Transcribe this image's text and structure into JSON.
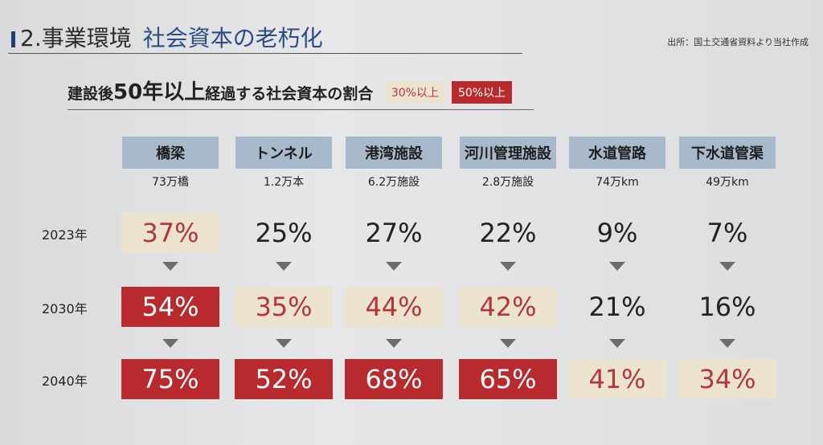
{
  "header": {
    "section": "2.事業環境",
    "topic": "社会資本の老朽化",
    "source": "出所：国土交通省資料より当社作成"
  },
  "heading": {
    "pre": "建設後",
    "big": "50年以上",
    "post": "経過する社会資本の割合",
    "legend_beige": "30%以上",
    "legend_red": "50%以上"
  },
  "colors": {
    "beige": "#ece3cf",
    "red": "#b82a2e",
    "header": "#a9b9cc",
    "accent_text": "#b3363a"
  },
  "columns": [
    {
      "name": "橋梁",
      "count": "73万橋"
    },
    {
      "name": "トンネル",
      "count": "1.2万本"
    },
    {
      "name": "港湾施設",
      "count": "6.2万施設"
    },
    {
      "name": "河川管理施設",
      "count": "2.8万施設"
    },
    {
      "name": "水道管路",
      "count": "74万km"
    },
    {
      "name": "下水道管渠",
      "count": "49万km"
    }
  ],
  "rows": [
    {
      "year": "2023年",
      "values": [
        "37%",
        "25%",
        "27%",
        "22%",
        "9%",
        "7%"
      ],
      "levels": [
        "beige",
        "none",
        "none",
        "none",
        "none",
        "none"
      ]
    },
    {
      "year": "2030年",
      "values": [
        "54%",
        "35%",
        "44%",
        "42%",
        "21%",
        "16%"
      ],
      "levels": [
        "red",
        "beige",
        "beige",
        "beige",
        "none",
        "none"
      ]
    },
    {
      "year": "2040年",
      "values": [
        "75%",
        "52%",
        "68%",
        "65%",
        "41%",
        "34%"
      ],
      "levels": [
        "red",
        "red",
        "red",
        "red",
        "beige",
        "beige"
      ]
    }
  ]
}
